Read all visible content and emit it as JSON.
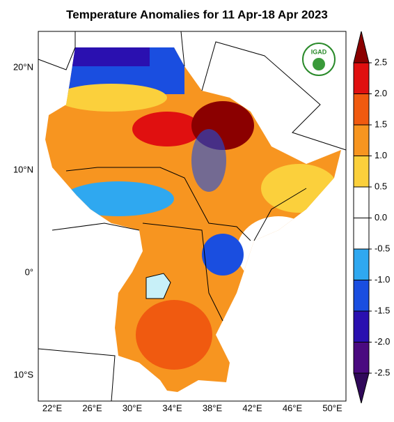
{
  "header": {
    "title": "Temperature Anomalies for 11 Apr-18 Apr 2023",
    "logo": "IGAD"
  },
  "map": {
    "lat_labels": [
      "20°N",
      "10°N",
      "0°",
      "10°S"
    ],
    "lon_labels": [
      "22°E",
      "26°E",
      "30°E",
      "34°E",
      "38°E",
      "42°E",
      "46°E",
      "50°E"
    ]
  },
  "colorbar": {
    "ticks": [
      {
        "value": 2.5,
        "label": "2.5"
      },
      {
        "value": 2,
        "label": "2.0"
      },
      {
        "value": 1.5,
        "label": "1.5"
      },
      {
        "value": 1,
        "label": "1.0"
      },
      {
        "value": 0.5,
        "label": "0.5"
      },
      {
        "value": 0,
        "label": "0.0"
      },
      {
        "value": -0.5,
        "label": "-0.5"
      },
      {
        "value": -1,
        "label": "-1.0"
      },
      {
        "value": -1.5,
        "label": "-1.5"
      },
      {
        "value": -2,
        "label": "-2.0"
      },
      {
        "value": -2.5,
        "label": "-2.5"
      }
    ],
    "colors": [
      "#8b0000",
      "#e01010",
      "#f05a10",
      "#f79520",
      "#fbd03c",
      "#ffffff",
      "#ffffff",
      "#2fa8f0",
      "#1a4ee0",
      "#2a10b0",
      "#4a0a80",
      "#30085a"
    ]
  }
}
